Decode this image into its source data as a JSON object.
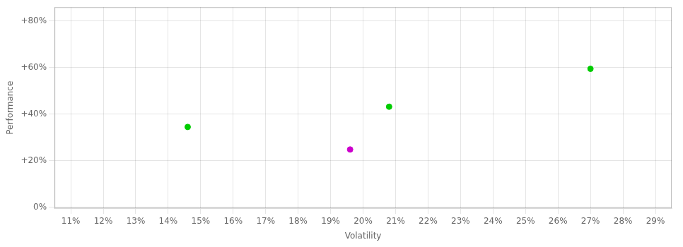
{
  "chart_data": {
    "type": "scatter",
    "xlabel": "Volatility",
    "ylabel": "Performance",
    "x": [
      0.146,
      0.196,
      0.208,
      0.27
    ],
    "values": [
      0.345,
      0.248,
      0.432,
      0.595
    ],
    "colors": [
      "#00cc00",
      "#cc00cc",
      "#00cc00",
      "#00cc00"
    ],
    "xlim": [
      0.105,
      0.295
    ],
    "ylim": [
      -0.005,
      0.86
    ],
    "xticks": [
      {
        "value": 0.11,
        "label": "11%"
      },
      {
        "value": 0.12,
        "label": "12%"
      },
      {
        "value": 0.13,
        "label": "13%"
      },
      {
        "value": 0.14,
        "label": "14%"
      },
      {
        "value": 0.15,
        "label": "15%"
      },
      {
        "value": 0.16,
        "label": "16%"
      },
      {
        "value": 0.17,
        "label": "17%"
      },
      {
        "value": 0.18,
        "label": "18%"
      },
      {
        "value": 0.19,
        "label": "19%"
      },
      {
        "value": 0.2,
        "label": "20%"
      },
      {
        "value": 0.21,
        "label": "21%"
      },
      {
        "value": 0.22,
        "label": "22%"
      },
      {
        "value": 0.23,
        "label": "23%"
      },
      {
        "value": 0.24,
        "label": "24%"
      },
      {
        "value": 0.25,
        "label": "25%"
      },
      {
        "value": 0.26,
        "label": "26%"
      },
      {
        "value": 0.27,
        "label": "27%"
      },
      {
        "value": 0.28,
        "label": "28%"
      },
      {
        "value": 0.29,
        "label": "29%"
      }
    ],
    "yticks": [
      {
        "value": 0.0,
        "label": "0%"
      },
      {
        "value": 0.2,
        "label": "+20%"
      },
      {
        "value": 0.4,
        "label": "+40%"
      },
      {
        "value": 0.6,
        "label": "+60%"
      },
      {
        "value": 0.8,
        "label": "+80%"
      }
    ],
    "grid": true
  }
}
